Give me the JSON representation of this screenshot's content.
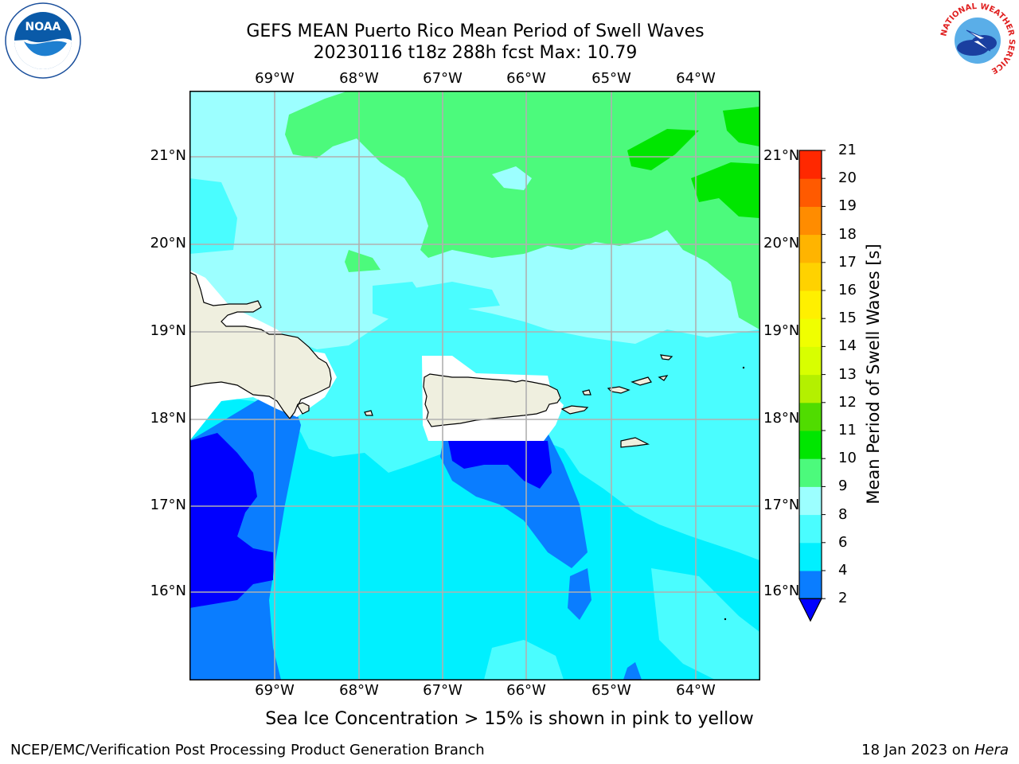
{
  "header": {
    "title_line1": "GEFS MEAN Puerto Rico Mean Period of Swell Waves",
    "title_line2": "20230116 t18z 288h fcst   Max: 10.79"
  },
  "logos": {
    "noaa_text": "NOAA",
    "nws_text": "NATIONAL WEATHER SERVICE"
  },
  "map": {
    "lon_labels": [
      "69°W",
      "68°W",
      "67°W",
      "66°W",
      "65°W",
      "64°W"
    ],
    "lat_labels": [
      "21°N",
      "20°N",
      "19°N",
      "18°N",
      "17°N",
      "16°N"
    ],
    "colors": {
      "land": "#efefdf",
      "grid": "#b0b0b0",
      "c2_4": "#0a7dff",
      "c4_6": "#00f0ff",
      "c6_8": "#4afdff",
      "c8_9": "#9cffff",
      "c9_10": "#4cfa7c",
      "c10_11": "#00e600",
      "below": "#0000ff",
      "nodata": "#ffffff"
    }
  },
  "colorbar": {
    "label": "Mean Period of Swell Waves [s]",
    "ticks": [
      "2",
      "4",
      "6",
      "8",
      "9",
      "10",
      "11",
      "12",
      "13",
      "14",
      "15",
      "16",
      "17",
      "18",
      "19",
      "20",
      "21"
    ],
    "colors": [
      "#0a7dff",
      "#00f0ff",
      "#4afdff",
      "#9cffff",
      "#4cfa7c",
      "#00e600",
      "#50dc00",
      "#b4f000",
      "#d8ff00",
      "#f0ff00",
      "#fff000",
      "#ffd200",
      "#ffb400",
      "#ff8c00",
      "#ff5a00",
      "#ff2800"
    ],
    "underflow_color": "#0000ff"
  },
  "footer": {
    "note": "Sea Ice Concentration > 15% is shown in pink to yellow",
    "left": "NCEP/EMC/Verification Post Processing Product Generation Branch",
    "right_prefix": "18 Jan 2023 on ",
    "right_machine": "Hera"
  }
}
